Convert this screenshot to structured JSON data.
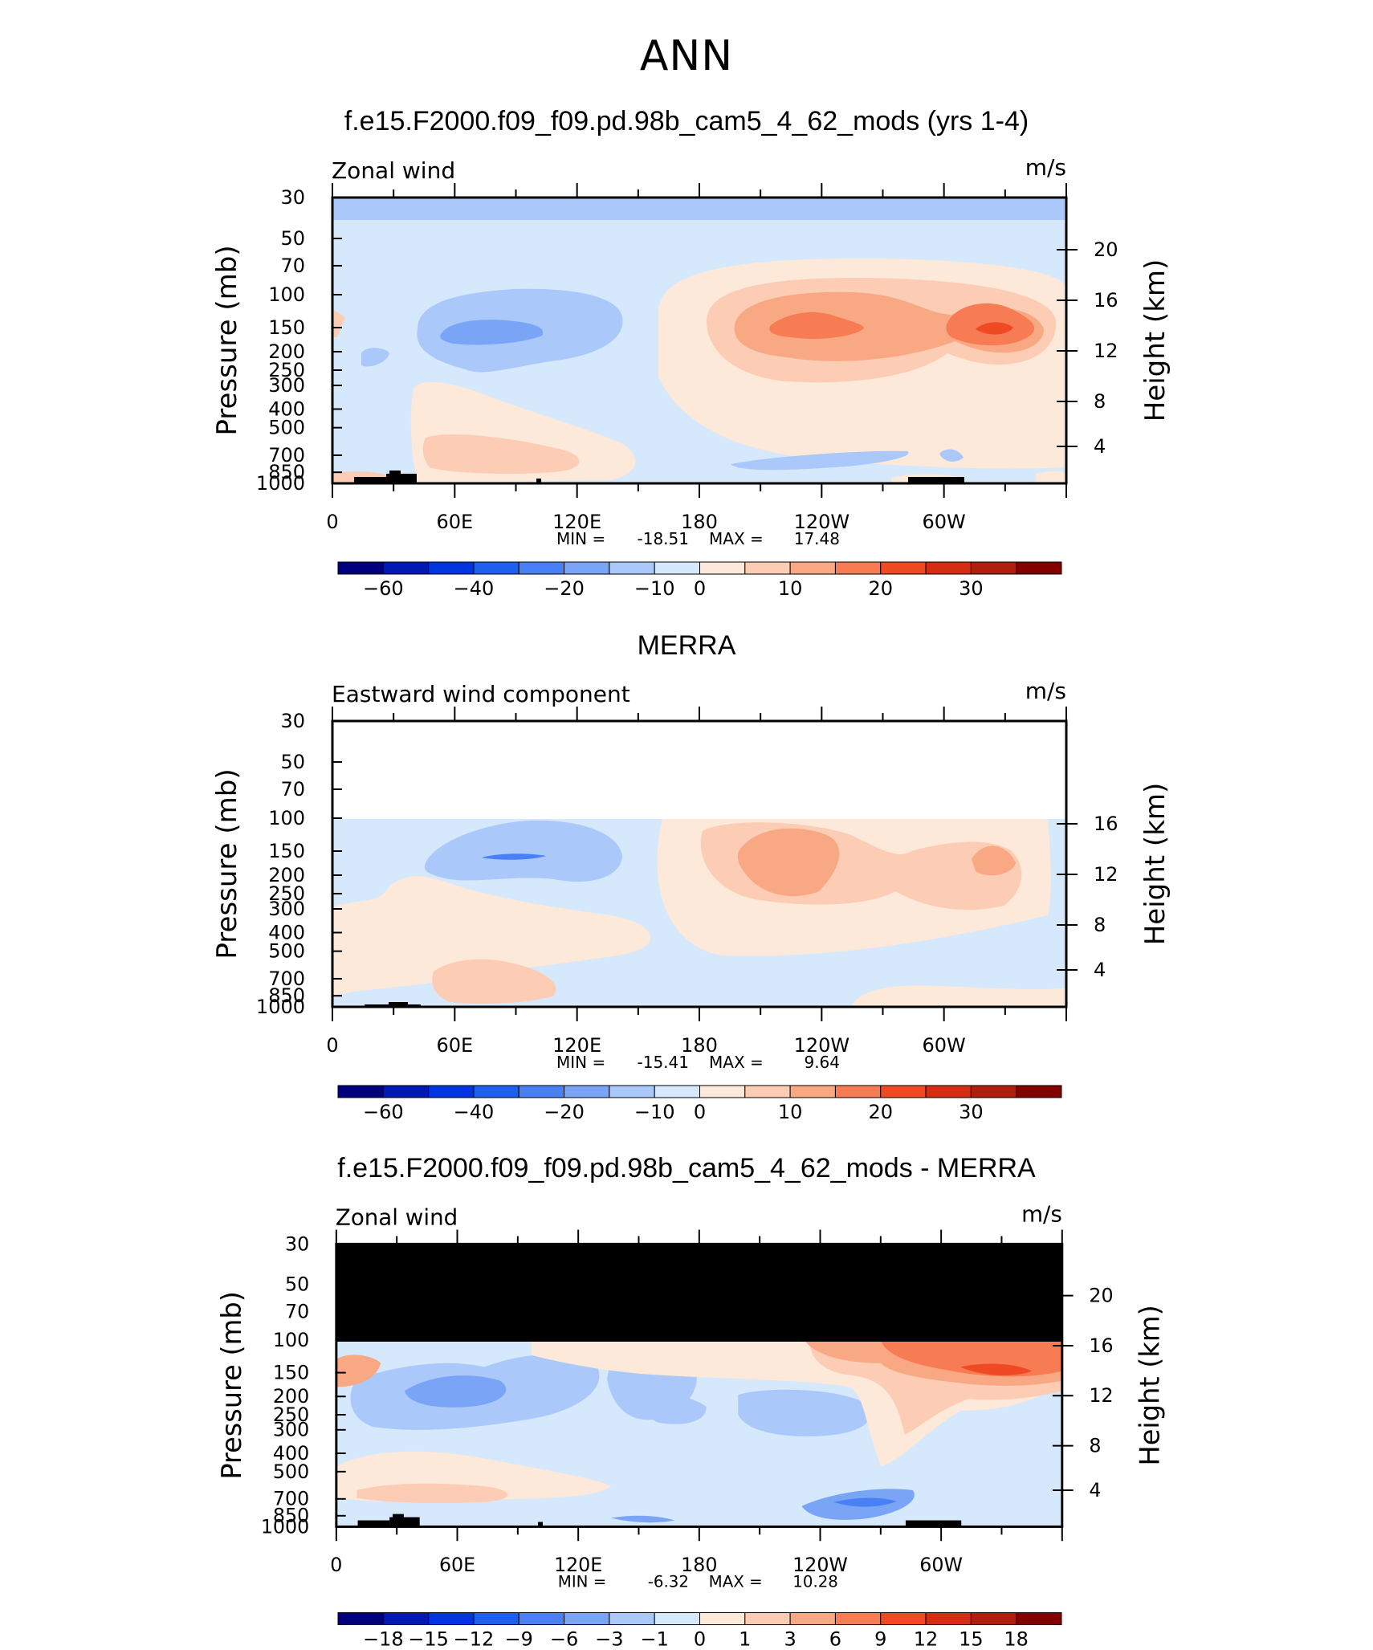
{
  "figure_title": "ANN",
  "chart_data": [
    {
      "type": "contour",
      "title": "f.e15.F2000.f09_f09.pd.98b_cam5_4_62_mods (yrs 1-4)",
      "left_label": "Zonal wind",
      "right_label": "m/s",
      "ylabel": "Pressure (mb)",
      "ylabel_right": "Height (km)",
      "pressure_ticks": [
        "30",
        "50",
        "70",
        "100",
        "150",
        "200",
        "250",
        "300",
        "400",
        "500",
        "700",
        "850",
        "1000"
      ],
      "height_ticks": [
        "20",
        "16",
        "12",
        "8",
        "4"
      ],
      "x_ticks": [
        "0",
        "60E",
        "120E",
        "180",
        "120W",
        "60W"
      ],
      "stats": {
        "min_label": "MIN =",
        "min": "-18.51",
        "max_label": "MAX =",
        "max": "17.48"
      },
      "colorbar_labels": [
        "-60",
        "-40",
        "-20",
        "-10",
        "0",
        "10",
        "20",
        "30"
      ],
      "colorbar_colors": [
        "#00007f",
        "#0019b3",
        "#0034e0",
        "#1e5ff0",
        "#4a80f5",
        "#7aa5f7",
        "#aac8fa",
        "#d6e8fc",
        "#fde9d9",
        "#fcccb4",
        "#f9a884",
        "#f77b53",
        "#f04a25",
        "#d42d14",
        "#b01e0e",
        "#820000"
      ]
    },
    {
      "type": "contour",
      "title": "MERRA",
      "left_label": "Eastward wind component",
      "right_label": "m/s",
      "ylabel": "Pressure (mb)",
      "ylabel_right": "Height (km)",
      "pressure_ticks": [
        "30",
        "50",
        "70",
        "100",
        "150",
        "200",
        "250",
        "300",
        "400",
        "500",
        "700",
        "850",
        "1000"
      ],
      "height_ticks": [
        "16",
        "12",
        "8",
        "4"
      ],
      "x_ticks": [
        "0",
        "60E",
        "120E",
        "180",
        "120W",
        "60W"
      ],
      "stats": {
        "min_label": "MIN =",
        "min": "-15.41",
        "max_label": "MAX =",
        "max": "9.64"
      },
      "colorbar_labels": [
        "-60",
        "-40",
        "-20",
        "-10",
        "0",
        "10",
        "20",
        "30"
      ],
      "colorbar_colors": [
        "#00007f",
        "#0019b3",
        "#0034e0",
        "#1e5ff0",
        "#4a80f5",
        "#7aa5f7",
        "#aac8fa",
        "#d6e8fc",
        "#fde9d9",
        "#fcccb4",
        "#f9a884",
        "#f77b53",
        "#f04a25",
        "#d42d14",
        "#b01e0e",
        "#820000"
      ]
    },
    {
      "type": "contour",
      "title": "f.e15.F2000.f09_f09.pd.98b_cam5_4_62_mods - MERRA",
      "left_label": "Zonal wind",
      "right_label": "m/s",
      "ylabel": "Pressure (mb)",
      "ylabel_right": "Height (km)",
      "pressure_ticks": [
        "30",
        "50",
        "70",
        "100",
        "150",
        "200",
        "250",
        "300",
        "400",
        "500",
        "700",
        "850",
        "1000"
      ],
      "height_ticks": [
        "20",
        "16",
        "12",
        "8",
        "4"
      ],
      "x_ticks": [
        "0",
        "60E",
        "120E",
        "180",
        "120W",
        "60W"
      ],
      "stats": {
        "min_label": "MIN =",
        "min": "-6.32",
        "max_label": "MAX =",
        "max": "10.28"
      },
      "colorbar_labels": [
        "-18",
        "-15",
        "-12",
        "-9",
        "-6",
        "-3",
        "-1",
        "0",
        "1",
        "3",
        "6",
        "9",
        "12",
        "15",
        "18"
      ],
      "colorbar_colors": [
        "#00007f",
        "#0019b3",
        "#0034e0",
        "#1e5ff0",
        "#4a80f5",
        "#7aa5f7",
        "#aac8fa",
        "#d6e8fc",
        "#fde9d9",
        "#fcccb4",
        "#f9a884",
        "#f77b53",
        "#f04a25",
        "#d42d14",
        "#b01e0e",
        "#820000"
      ]
    }
  ]
}
